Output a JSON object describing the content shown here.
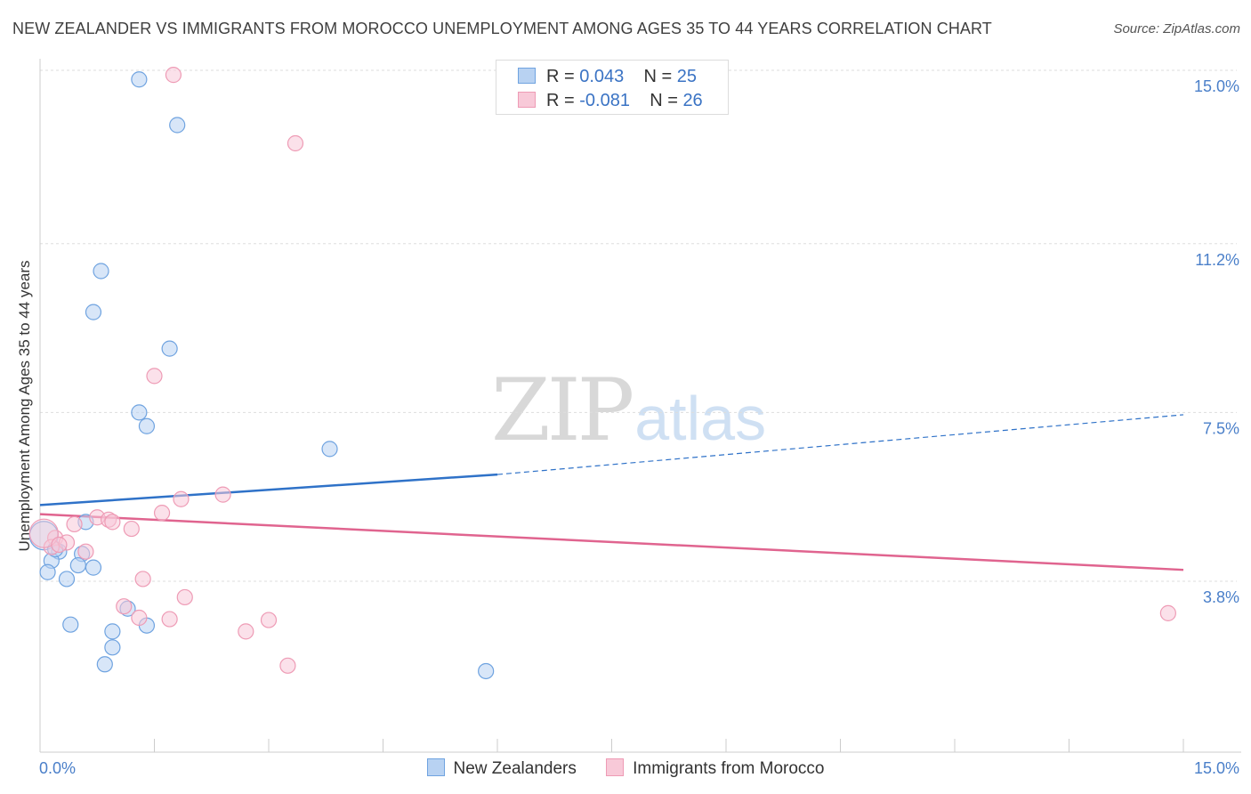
{
  "chart_data": {
    "type": "scatter",
    "title": "NEW ZEALANDER VS IMMIGRANTS FROM MOROCCO UNEMPLOYMENT AMONG AGES 35 TO 44 YEARS CORRELATION CHART",
    "source": "Source: ZipAtlas.com",
    "xlabel": "",
    "ylabel": "Unemployment Among Ages 35 to 44 years",
    "xlim": [
      0,
      15
    ],
    "ylim": [
      0,
      15
    ],
    "x_tick_labels": [
      "0.0%",
      "15.0%"
    ],
    "y_ticks": [
      {
        "value": 15.0,
        "label": "15.0%"
      },
      {
        "value": 11.2,
        "label": "11.2%"
      },
      {
        "value": 7.5,
        "label": "7.5%"
      },
      {
        "value": 3.8,
        "label": "3.8%"
      }
    ],
    "grid": "horizontal dashed",
    "legend_position": "top-center",
    "series": [
      {
        "name": "New Zealanders",
        "color": "#6fa3e0",
        "fill": "#b8d2f2",
        "line_color": "#2f72c8",
        "R": "0.043",
        "N": "25",
        "trend": {
          "x0": 0.0,
          "y0": 5.47,
          "x1": 6.0,
          "y1": 6.14,
          "dash_to_x": 15.0,
          "dash_to_y": 7.45
        },
        "points": [
          [
            1.3,
            14.8
          ],
          [
            1.8,
            13.8
          ],
          [
            0.8,
            10.6
          ],
          [
            0.7,
            9.7
          ],
          [
            1.7,
            8.9
          ],
          [
            1.3,
            7.5
          ],
          [
            1.4,
            7.2
          ],
          [
            3.8,
            6.7
          ],
          [
            0.6,
            5.1
          ],
          [
            0.25,
            4.45
          ],
          [
            0.55,
            4.4
          ],
          [
            0.15,
            4.25
          ],
          [
            0.5,
            4.15
          ],
          [
            0.7,
            4.1
          ],
          [
            0.1,
            4.0
          ],
          [
            0.35,
            3.85
          ],
          [
            1.15,
            3.2
          ],
          [
            0.4,
            2.85
          ],
          [
            1.4,
            2.83
          ],
          [
            0.95,
            2.7
          ],
          [
            0.95,
            2.35
          ],
          [
            0.85,
            1.98
          ],
          [
            5.85,
            1.83
          ],
          [
            0.05,
            4.8
          ],
          [
            0.2,
            4.5
          ]
        ]
      },
      {
        "name": "Immigrants from Morocco",
        "color": "#ee9bb5",
        "fill": "#f8c9d8",
        "line_color": "#e0648f",
        "R": "-0.081",
        "N": "26",
        "trend": {
          "x0": 0.0,
          "y0": 5.27,
          "x1": 15.0,
          "y1": 4.05
        },
        "points": [
          [
            1.75,
            14.9
          ],
          [
            3.35,
            13.4
          ],
          [
            1.5,
            8.3
          ],
          [
            2.4,
            5.7
          ],
          [
            1.85,
            5.6
          ],
          [
            1.6,
            5.3
          ],
          [
            0.75,
            5.2
          ],
          [
            0.9,
            5.15
          ],
          [
            0.95,
            5.1
          ],
          [
            0.45,
            5.05
          ],
          [
            1.2,
            4.95
          ],
          [
            0.2,
            4.75
          ],
          [
            0.35,
            4.65
          ],
          [
            0.15,
            4.55
          ],
          [
            0.6,
            4.45
          ],
          [
            1.35,
            3.85
          ],
          [
            1.9,
            3.45
          ],
          [
            1.1,
            3.25
          ],
          [
            1.3,
            3.0
          ],
          [
            1.7,
            2.97
          ],
          [
            3.0,
            2.95
          ],
          [
            2.7,
            2.7
          ],
          [
            3.25,
            1.95
          ],
          [
            14.8,
            3.1
          ],
          [
            0.05,
            4.85
          ],
          [
            0.25,
            4.6
          ]
        ]
      }
    ]
  }
}
